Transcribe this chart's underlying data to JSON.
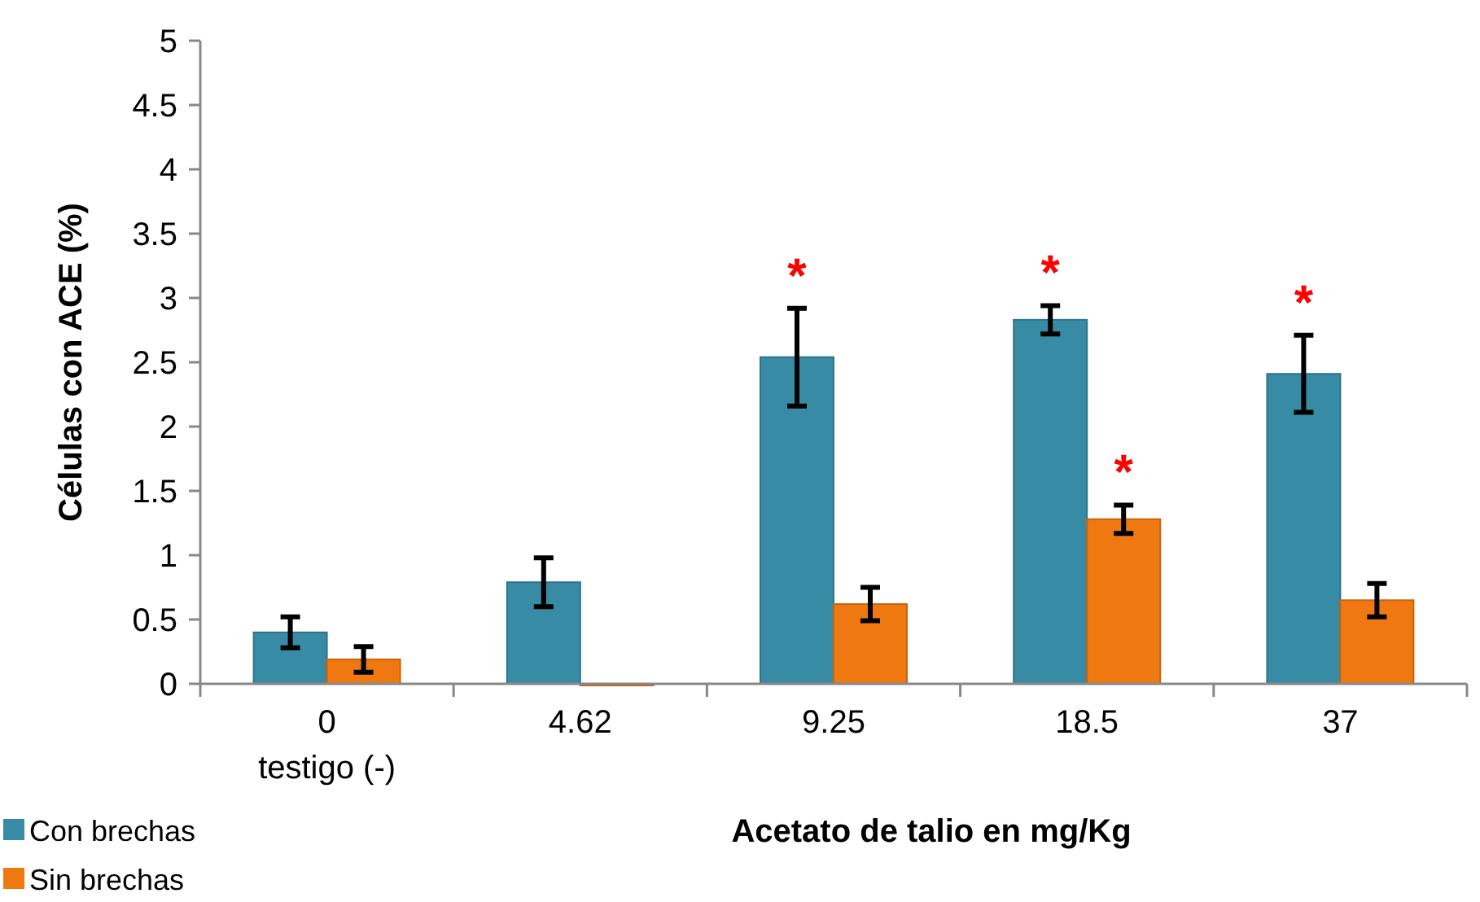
{
  "chart_data": {
    "type": "bar",
    "xlabel": "Acetato de talio en mg/Kg",
    "ylabel": "Células con ACE (%)",
    "categories": [
      "0\ntestigo (-)",
      "4.62",
      "9.25",
      "18.5",
      "37"
    ],
    "series": [
      {
        "name": "Con brechas",
        "color": "#378ba5",
        "values": [
          0.4,
          0.79,
          2.54,
          2.83,
          2.41
        ],
        "errors": [
          0.12,
          0.19,
          0.38,
          0.11,
          0.3
        ]
      },
      {
        "name": "Sin brechas",
        "color": "#f07810",
        "values": [
          0.19,
          0,
          0.62,
          1.28,
          0.65
        ],
        "errors": [
          0.1,
          null,
          0.13,
          0.11,
          0.13
        ]
      }
    ],
    "ylim": [
      0,
      5
    ],
    "yticks": [
      0,
      0.5,
      1,
      1.5,
      2,
      2.5,
      3,
      3.5,
      4,
      4.5,
      5
    ],
    "grid": false,
    "legend": "bottom left",
    "annotations": [
      {
        "text": "*",
        "x": "9.25",
        "y": 2.54
      },
      {
        "text": "*",
        "x": "18.5",
        "y": 2.83
      },
      {
        "text": "*",
        "x": "18.5",
        "y": 1.28
      },
      {
        "text": "*",
        "x": "37",
        "y": 2.41
      }
    ]
  }
}
